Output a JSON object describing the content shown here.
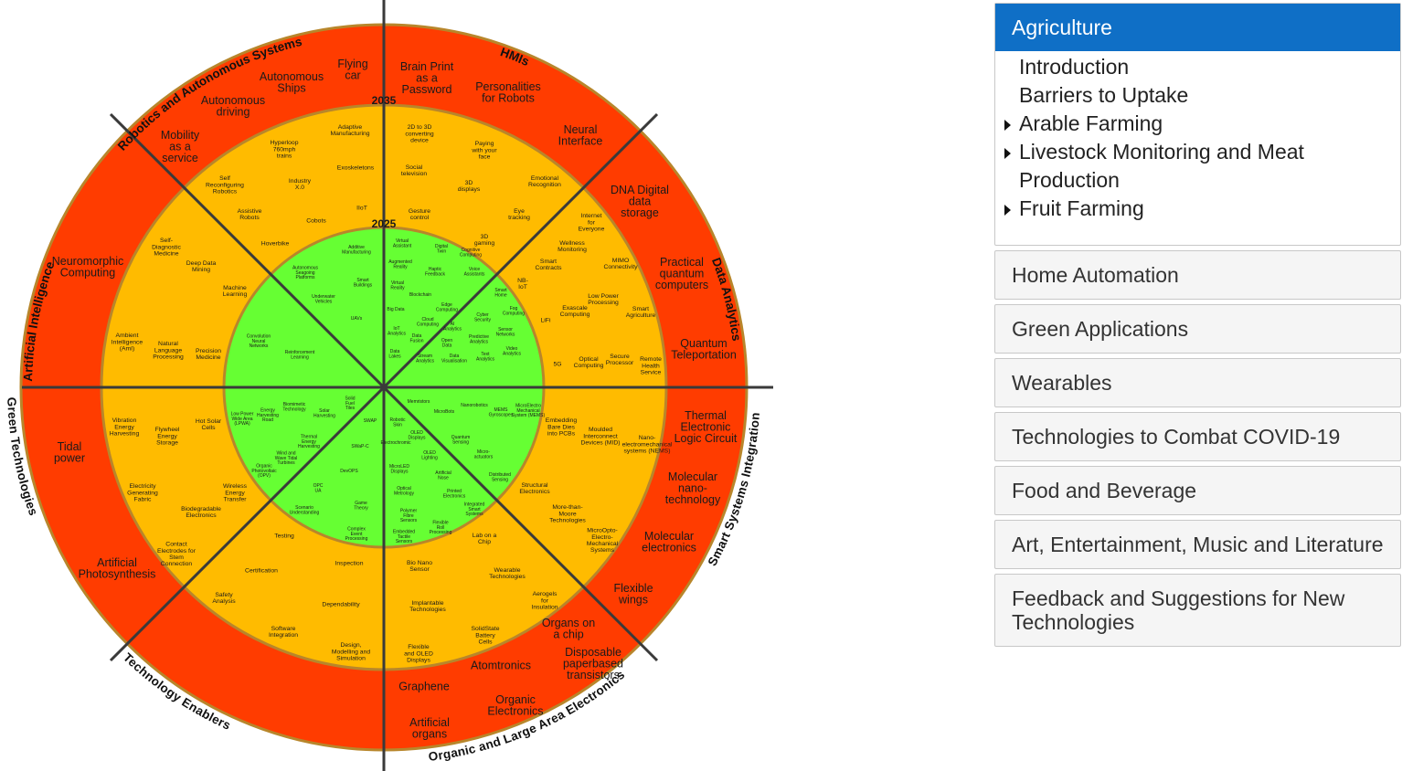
{
  "sectors": [
    "Robotics and Autonomous Systems",
    "HMIs",
    "Data Analytics",
    "Smart Systems Integration",
    "Organic and Large Area Electronics",
    "Technology Enablers",
    "Green Technologies",
    "Artificial Intelligence"
  ],
  "ring_years": [
    "2035",
    "2025"
  ],
  "ring_colors": {
    "outer": "#ff3c00",
    "middle": "#ffbb00",
    "inner": "#66ff33",
    "border": "#b8862b",
    "axis": "#3a3a3a"
  },
  "outer_items": [
    {
      "lines": [
        "Flying",
        "car"
      ]
    },
    {
      "lines": [
        "Autonomous",
        "Ships"
      ]
    },
    {
      "lines": [
        "Autonomous",
        "driving"
      ]
    },
    {
      "lines": [
        "Mobility",
        "as a",
        "service"
      ]
    },
    {
      "lines": [
        "Brain Print",
        "as a",
        "Password"
      ]
    },
    {
      "lines": [
        "Personalities",
        "for Robots"
      ]
    },
    {
      "lines": [
        "Neural",
        "Interface"
      ]
    },
    {
      "lines": [
        "DNA Digital",
        "data",
        "storage"
      ]
    },
    {
      "lines": [
        "Practical",
        "quantum",
        "computers"
      ]
    },
    {
      "lines": [
        "Quantum",
        "Teleportation"
      ]
    },
    {
      "lines": [
        "Thermal",
        "Electronic",
        "Logic Circuit"
      ]
    },
    {
      "lines": [
        "Molecular",
        "nano-",
        "technology"
      ]
    },
    {
      "lines": [
        "Molecular",
        "electronics"
      ]
    },
    {
      "lines": [
        "Flexible",
        "wings"
      ]
    },
    {
      "lines": [
        "Organs on",
        "a chip"
      ]
    },
    {
      "lines": [
        "Disposable",
        "paperbased",
        "transistors"
      ]
    },
    {
      "lines": [
        "Atomtronics"
      ]
    },
    {
      "lines": [
        "Graphene"
      ]
    },
    {
      "lines": [
        "Organic",
        "Electronics"
      ]
    },
    {
      "lines": [
        "Artificial",
        "organs"
      ]
    },
    {
      "lines": [
        "Tidal",
        "power"
      ]
    },
    {
      "lines": [
        "Artificial",
        "Photosynthesis"
      ]
    },
    {
      "lines": [
        "Neuromorphic",
        "Computing"
      ]
    }
  ],
  "middle_items": [
    {
      "lines": [
        "Adaptive",
        "Manufacturing"
      ]
    },
    {
      "lines": [
        "Hyperloop",
        "760mph",
        "trains"
      ]
    },
    {
      "lines": [
        "Exoskeletons"
      ]
    },
    {
      "lines": [
        "Self",
        "Reconfiguring",
        "Robotics"
      ]
    },
    {
      "lines": [
        "Industry",
        "X.0"
      ]
    },
    {
      "lines": [
        "IIoT"
      ]
    },
    {
      "lines": [
        "Assistive",
        "Robots"
      ]
    },
    {
      "lines": [
        "Cobots"
      ]
    },
    {
      "lines": [
        "Hoverbike"
      ]
    },
    {
      "lines": [
        "2D to 3D",
        "converting",
        "device"
      ]
    },
    {
      "lines": [
        "Paying",
        "with your",
        "face"
      ]
    },
    {
      "lines": [
        "Social",
        "television"
      ]
    },
    {
      "lines": [
        "3D",
        "displays"
      ]
    },
    {
      "lines": [
        "Emotional",
        "Recognition"
      ]
    },
    {
      "lines": [
        "Gesture",
        "control"
      ]
    },
    {
      "lines": [
        "Eye",
        "tracking"
      ]
    },
    {
      "lines": [
        "3D",
        "gaming"
      ]
    },
    {
      "lines": [
        "Internet",
        "for",
        "Everyone"
      ]
    },
    {
      "lines": [
        "Wellness",
        "Monitoring"
      ]
    },
    {
      "lines": [
        "Smart",
        "Contracts"
      ]
    },
    {
      "lines": [
        "MIMO",
        "Connectivity"
      ]
    },
    {
      "lines": [
        "NB-",
        "IoT"
      ]
    },
    {
      "lines": [
        "Low Power",
        "Processing"
      ]
    },
    {
      "lines": [
        "Exascale",
        "Computing"
      ]
    },
    {
      "lines": [
        "Smart",
        "Agriculture"
      ]
    },
    {
      "lines": [
        "LiFi"
      ]
    },
    {
      "lines": [
        "Optical",
        "Computing"
      ]
    },
    {
      "lines": [
        "Secure",
        "Processor"
      ]
    },
    {
      "lines": [
        "Remote",
        "Health",
        "Service"
      ]
    },
    {
      "lines": [
        "5G"
      ]
    },
    {
      "lines": [
        "Embedding",
        "Bare Dies",
        "into PCBs"
      ]
    },
    {
      "lines": [
        "Moulded",
        "Interconnect",
        "Devices (MID)"
      ]
    },
    {
      "lines": [
        "Nano-",
        "electromechanical",
        "systems (NEMS)"
      ]
    },
    {
      "lines": [
        "Structural",
        "Electronics"
      ]
    },
    {
      "lines": [
        "More-than-",
        "Moore",
        "Technologies"
      ]
    },
    {
      "lines": [
        "MicroOpto-",
        "Electro-",
        "Mechanical",
        "Systems"
      ]
    },
    {
      "lines": [
        "Lab on a",
        "Chip"
      ]
    },
    {
      "lines": [
        "Bio Nano",
        "Sensor"
      ]
    },
    {
      "lines": [
        "Wearable",
        "Technologies"
      ]
    },
    {
      "lines": [
        "Aerogels",
        "for",
        "Insulation"
      ]
    },
    {
      "lines": [
        "Implantable",
        "Technologies"
      ]
    },
    {
      "lines": [
        "SolidState",
        "Battery",
        "Cells"
      ]
    },
    {
      "lines": [
        "Flexible",
        "and OLED",
        "Displays"
      ]
    },
    {
      "lines": [
        "Testing"
      ]
    },
    {
      "lines": [
        "Certification"
      ]
    },
    {
      "lines": [
        "Inspection"
      ]
    },
    {
      "lines": [
        "Safety",
        "Analysis"
      ]
    },
    {
      "lines": [
        "Dependability"
      ]
    },
    {
      "lines": [
        "Software",
        "Integration"
      ]
    },
    {
      "lines": [
        "Design,",
        "Modelling and",
        "Simulation"
      ]
    },
    {
      "lines": [
        "Vibration",
        "Energy",
        "Harvesting"
      ]
    },
    {
      "lines": [
        "Flywheel",
        "Energy",
        "Storage"
      ]
    },
    {
      "lines": [
        "Hot Solar",
        "Cells"
      ]
    },
    {
      "lines": [
        "Electricity",
        "Generating",
        "Fabric"
      ]
    },
    {
      "lines": [
        "Wireless",
        "Energy",
        "Transfer"
      ]
    },
    {
      "lines": [
        "Biodegradable",
        "Electronics"
      ]
    },
    {
      "lines": [
        "Contact",
        "Electrodes for",
        "Stem",
        "Connection"
      ]
    },
    {
      "lines": [
        "Self-",
        "Diagnostic",
        "Medicine"
      ]
    },
    {
      "lines": [
        "Deep Data",
        "Mining"
      ]
    },
    {
      "lines": [
        "Machine",
        "Learning"
      ]
    },
    {
      "lines": [
        "Ambient",
        "Intelligence",
        "(AmI)"
      ]
    },
    {
      "lines": [
        "Natural",
        "Language",
        "Processing"
      ]
    },
    {
      "lines": [
        "Precision",
        "Medicine"
      ]
    }
  ],
  "inner_items": [
    {
      "lines": [
        "Additive",
        "Manufacturing"
      ]
    },
    {
      "lines": [
        "Autonomous",
        "Seagoing",
        "Platforms"
      ]
    },
    {
      "lines": [
        "Smart",
        "Buildings"
      ]
    },
    {
      "lines": [
        "Underwater",
        "Vehicles"
      ]
    },
    {
      "lines": [
        "UAVs"
      ]
    },
    {
      "lines": [
        "Convolution",
        "Neural",
        "Networks"
      ]
    },
    {
      "lines": [
        "Reinforcement",
        "Learning"
      ]
    },
    {
      "lines": [
        "Memristors"
      ]
    },
    {
      "lines": [
        "MicroBots"
      ]
    },
    {
      "lines": [
        "Nanorobotics"
      ]
    },
    {
      "lines": [
        "MEMS",
        "Gyroscopes"
      ]
    },
    {
      "lines": [
        "MicroElectro",
        "Mechanical",
        "System (MEMS)"
      ]
    },
    {
      "lines": [
        "Robotic",
        "Skin"
      ]
    },
    {
      "lines": [
        "OLED",
        "Displays"
      ]
    },
    {
      "lines": [
        "Quantum",
        "Sensing"
      ]
    },
    {
      "lines": [
        "Micro-",
        "actuators"
      ]
    },
    {
      "lines": [
        "Distributed",
        "Sensing"
      ]
    },
    {
      "lines": [
        "Electrochromic"
      ]
    },
    {
      "lines": [
        "OLED",
        "Lighting"
      ]
    },
    {
      "lines": [
        "MicroLED",
        "Displays"
      ]
    },
    {
      "lines": [
        "Artificial",
        "Nose"
      ]
    },
    {
      "lines": [
        "Printed",
        "Electronics"
      ]
    },
    {
      "lines": [
        "Integrated",
        "Smart",
        "Systems"
      ]
    },
    {
      "lines": [
        "Optical",
        "Metrology"
      ]
    },
    {
      "lines": [
        "Polymer",
        "Fibre",
        "Sensors"
      ]
    },
    {
      "lines": [
        "Flexible",
        "Roll",
        "Processing"
      ]
    },
    {
      "lines": [
        "Embedded",
        "Tactile",
        "Sensors"
      ]
    },
    {
      "lines": [
        "Biomimetic",
        "Technology"
      ]
    },
    {
      "lines": [
        "Energy",
        "Harvesting",
        "Road"
      ]
    },
    {
      "lines": [
        "Solar",
        "Harvesting"
      ]
    },
    {
      "lines": [
        "Solid",
        "Fuel",
        "Tiles"
      ]
    },
    {
      "lines": [
        "Low Power",
        "Wide Area",
        "(LPWA)"
      ]
    },
    {
      "lines": [
        "Thermal",
        "Energy",
        "Harvesting"
      ]
    },
    {
      "lines": [
        "Wind and",
        "Wave Tidal",
        "Turbines"
      ]
    },
    {
      "lines": [
        "Organic",
        "Photovoltaic",
        "(OPV)"
      ]
    },
    {
      "lines": [
        "SWAP"
      ]
    },
    {
      "lines": [
        "SWaP-C"
      ]
    },
    {
      "lines": [
        "DevOPS"
      ]
    },
    {
      "lines": [
        "OPC",
        "UA"
      ]
    },
    {
      "lines": [
        "Scenario",
        "Understanding"
      ]
    },
    {
      "lines": [
        "Game",
        "Theory"
      ]
    },
    {
      "lines": [
        "Complex",
        "Event",
        "Processing"
      ]
    },
    {
      "lines": [
        "Virtual",
        "Assistant"
      ]
    },
    {
      "lines": [
        "Digital",
        "Twin"
      ]
    },
    {
      "lines": [
        "Cognitive",
        "Computing"
      ]
    },
    {
      "lines": [
        "Augmented",
        "Reality"
      ]
    },
    {
      "lines": [
        "Haptic",
        "Feedback"
      ]
    },
    {
      "lines": [
        "Voice",
        "Assistants"
      ]
    },
    {
      "lines": [
        "Virtual",
        "Reality"
      ]
    },
    {
      "lines": [
        "Blockchain"
      ]
    },
    {
      "lines": [
        "Edge",
        "Computing"
      ]
    },
    {
      "lines": [
        "Smart",
        "Home"
      ]
    },
    {
      "lines": [
        "Big Data"
      ]
    },
    {
      "lines": [
        "Cloud",
        "Computing"
      ]
    },
    {
      "lines": [
        "AI",
        "Analytics"
      ]
    },
    {
      "lines": [
        "Cyber",
        "Security"
      ]
    },
    {
      "lines": [
        "Fog",
        "Computing"
      ]
    },
    {
      "lines": [
        "IoT",
        "Analytics"
      ]
    },
    {
      "lines": [
        "Data",
        "Fusion"
      ]
    },
    {
      "lines": [
        "Open",
        "Data"
      ]
    },
    {
      "lines": [
        "Predictive",
        "Analytics"
      ]
    },
    {
      "lines": [
        "Sensor",
        "Networks"
      ]
    },
    {
      "lines": [
        "Data",
        "Lakes"
      ]
    },
    {
      "lines": [
        "Stream",
        "Analytics"
      ]
    },
    {
      "lines": [
        "Data",
        "Visualisation"
      ]
    },
    {
      "lines": [
        "Text",
        "Analytics"
      ]
    },
    {
      "lines": [
        "Video",
        "Analytics"
      ]
    },
    {
      "lines": [
        "Location",
        "Analytics"
      ]
    }
  ],
  "sidebar": {
    "active_title": "Agriculture",
    "subitems": [
      {
        "label": "Introduction",
        "expandable": false
      },
      {
        "label": "Barriers to Uptake",
        "expandable": false
      },
      {
        "label": "Arable Farming",
        "expandable": true
      },
      {
        "label": "Livestock Monitoring and Meat Production",
        "expandable": true
      },
      {
        "label": "Fruit Farming",
        "expandable": true
      }
    ],
    "panels": [
      "Home Automation",
      "Green Applications",
      "Wearables",
      "Technologies to Combat COVID-19",
      "Food and Beverage",
      "Art, Entertainment, Music and Literature",
      "Feedback and Suggestions for New Technologies"
    ]
  }
}
